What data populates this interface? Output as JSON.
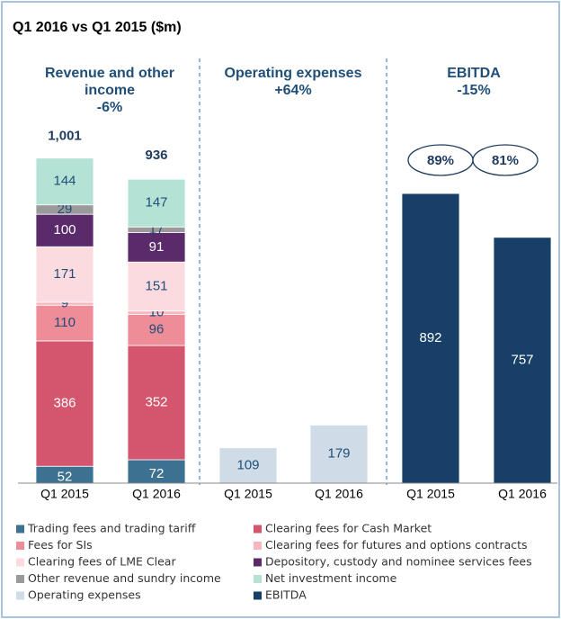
{
  "chart_data": {
    "type": "stacked_bar",
    "title": "Q1 2016 vs Q1 2015 ($m)",
    "panels": [
      {
        "title": "Revenue and other income",
        "change": "-6%"
      },
      {
        "title": "Operating expenses",
        "change": "+64%"
      },
      {
        "title": "EBITDA",
        "change": "-15%"
      }
    ],
    "categories": [
      "Q1 2015",
      "Q1 2016",
      "Q1 2015",
      "Q1 2016",
      "Q1 2015",
      "Q1 2016"
    ],
    "ylim": [
      0,
      1100
    ],
    "series": [
      {
        "name": "Trading fees and trading tariff",
        "color": "#3d7191",
        "values": [
          52,
          72,
          null,
          null,
          null,
          null
        ]
      },
      {
        "name": "Clearing fees for Cash Market",
        "color": "#d4566e",
        "values": [
          386,
          352,
          null,
          null,
          null,
          null
        ]
      },
      {
        "name": "Fees for SIs",
        "color": "#ee8c98",
        "values": [
          110,
          96,
          null,
          null,
          null,
          null
        ]
      },
      {
        "name": "Clearing fees for futures and options contracts",
        "color": "#f6b6be",
        "values": [
          9,
          10,
          null,
          null,
          null,
          null
        ]
      },
      {
        "name": "Clearing fees of LME Clear",
        "color": "#fbdbe0",
        "values": [
          171,
          151,
          null,
          null,
          null,
          null
        ]
      },
      {
        "name": "Depository, custody and nominee services fees",
        "color": "#5b2a6b",
        "values": [
          100,
          91,
          null,
          null,
          null,
          null
        ]
      },
      {
        "name": "Other revenue and sundry income",
        "color": "#9a9a9a",
        "values": [
          29,
          17,
          null,
          null,
          null,
          null
        ]
      },
      {
        "name": "Net investment income",
        "color": "#b4e3d5",
        "values": [
          144,
          147,
          null,
          null,
          null,
          null
        ]
      },
      {
        "name": "Operating expenses",
        "color": "#cfdbe6",
        "values": [
          null,
          null,
          109,
          179,
          null,
          null
        ]
      },
      {
        "name": "EBITDA",
        "color": "#173f68",
        "values": [
          null,
          null,
          null,
          null,
          892,
          757
        ]
      }
    ],
    "totals": {
      "values": [
        1001,
        936
      ],
      "value_labels": [
        "1,001",
        "936"
      ]
    },
    "margins": {
      "values": [
        89,
        81
      ],
      "value_labels": [
        "89%",
        "81%"
      ]
    }
  }
}
